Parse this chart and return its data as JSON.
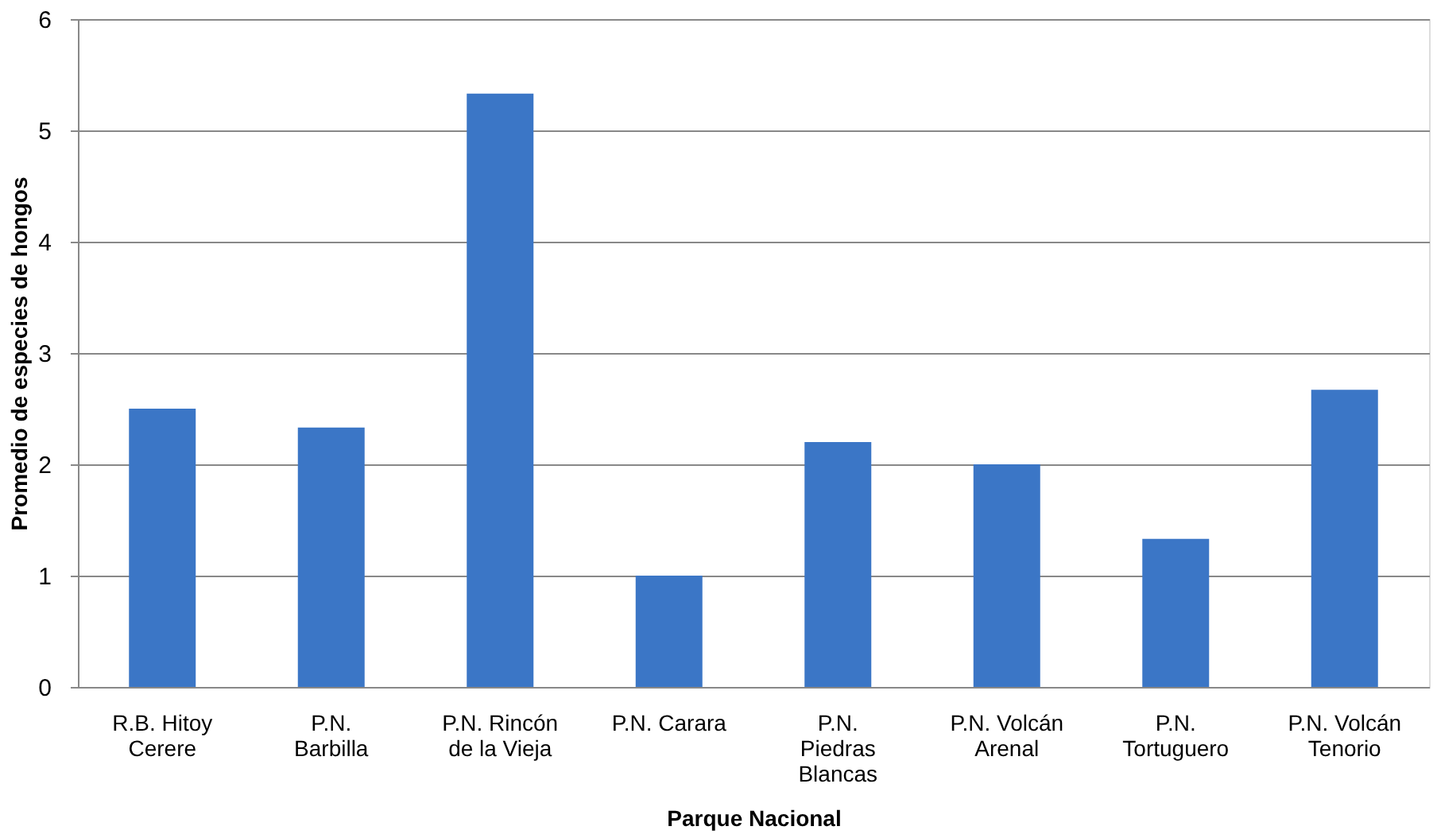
{
  "chart_data": {
    "type": "bar",
    "xlabel": "Parque Nacional",
    "ylabel": "Promedio de especies de hongos",
    "categories": [
      "R.B. Hitoy Cerere",
      "P.N. Barbilla",
      "P.N. Rincón de la Vieja",
      "P.N. Carara",
      "P.N. Piedras Blancas",
      "P.N. Volcán Arenal",
      "P.N. Tortuguero",
      "P.N. Volcán Tenorio"
    ],
    "values": [
      2.5,
      2.33,
      5.33,
      1.0,
      2.2,
      2.0,
      1.33,
      2.67
    ],
    "color": "#3b76c6",
    "ylim": [
      0,
      6
    ],
    "yticks": [
      0,
      1,
      2,
      3,
      4,
      5,
      6
    ],
    "grid": "y"
  }
}
